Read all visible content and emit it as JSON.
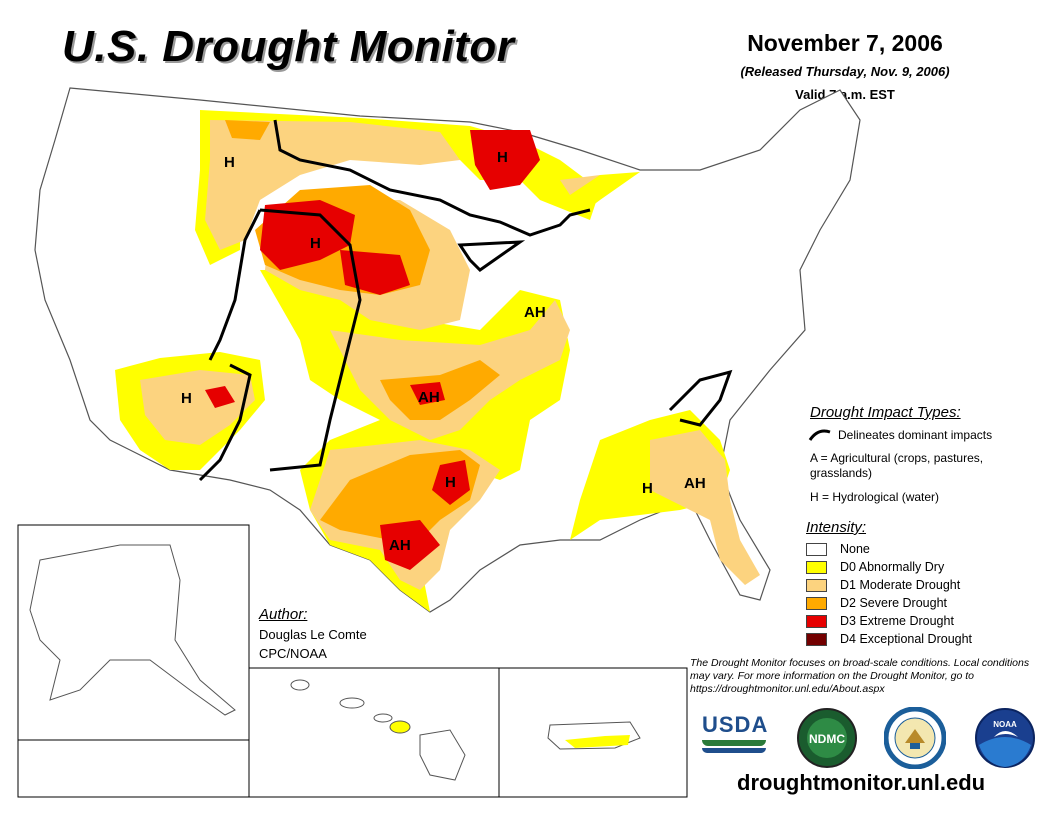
{
  "title": "U.S. Drought Monitor",
  "date": "November 7, 2006",
  "released": "(Released Thursday, Nov. 9, 2006)",
  "valid": "Valid 7 a.m. EST",
  "impact_types": {
    "heading": "Drought Impact Types:",
    "line_desc": "Delineates dominant impacts",
    "a_desc": "A = Agricultural (crops, pastures, grasslands)",
    "h_desc": "H = Hydrological (water)"
  },
  "intensity": {
    "heading": "Intensity:",
    "levels": [
      {
        "label": "None",
        "color": "#ffffff"
      },
      {
        "label": "D0 Abnormally Dry",
        "color": "#ffff00"
      },
      {
        "label": "D1 Moderate Drought",
        "color": "#fcd37f"
      },
      {
        "label": "D2 Severe Drought",
        "color": "#ffaa00"
      },
      {
        "label": "D3 Extreme Drought",
        "color": "#e60000"
      },
      {
        "label": "D4 Exceptional Drought",
        "color": "#730000"
      }
    ]
  },
  "map_labels": [
    "H",
    "H",
    "H",
    "H",
    "AH",
    "AH",
    "H",
    "AH",
    "H",
    "AH"
  ],
  "author": {
    "heading": "Author:",
    "name": "Douglas Le Comte",
    "org": "CPC/NOAA"
  },
  "note": "The Drought Monitor focuses on broad-scale conditions. Local conditions may vary. For more information on the Drought Monitor, go to https://droughtmonitor.unl.edu/About.aspx",
  "logos": {
    "usda": "USDA",
    "ndmc": "NDMC",
    "noaa": "NOAA"
  },
  "url": "droughtmonitor.unl.edu"
}
